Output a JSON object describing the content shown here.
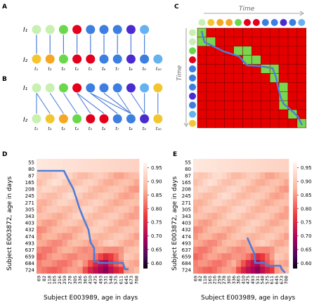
{
  "figure": {
    "panel_labels": {
      "a": "A",
      "b": "B",
      "c": "C",
      "d": "D",
      "e": "E"
    },
    "series_labels": {
      "i1": "I₁",
      "i2": "I₂"
    },
    "t_labels": [
      "t₁",
      "t₂",
      "t₃",
      "t₄",
      "t₅",
      "t₆",
      "t₇",
      "t₈",
      "t₉",
      "t₁₀"
    ],
    "time_label": "Time",
    "circle_colors": {
      "light_green": "#c8f0b0",
      "green": "#69d84a",
      "red": "#e4001c",
      "blue": "#3d7fe0",
      "indigo": "#4b2bd0",
      "light_blue": "#66b2f0",
      "yellow": "#f3c631",
      "orange": "#f5a623"
    },
    "panel_a": {
      "top_row": [
        "light_green",
        "light_green",
        "green",
        "red",
        "blue",
        "blue",
        "blue",
        "indigo",
        "light_blue"
      ],
      "bottom_row": [
        "yellow",
        "orange",
        "green",
        "red",
        "red",
        "blue",
        "blue",
        "indigo",
        "blue",
        "light_blue"
      ]
    },
    "panel_b": {
      "top_row": [
        "light_green",
        "light_green",
        "green",
        "red",
        "blue",
        "blue",
        "blue",
        "indigo",
        "light_blue",
        "yellow"
      ],
      "bottom_row": [
        "light_green",
        "yellow",
        "orange",
        "green",
        "red",
        "red",
        "blue",
        "blue",
        "indigo",
        "yellow"
      ]
    },
    "panel_c": {
      "top_colors": [
        "light_green",
        "yellow",
        "orange",
        "orange",
        "green",
        "red",
        "red",
        "blue",
        "blue",
        "indigo",
        "blue",
        "light_blue"
      ],
      "left_colors": [
        "light_green",
        "light_green",
        "green",
        "red",
        "blue",
        "blue",
        "blue",
        "indigo",
        "blue",
        "light_blue",
        "yellow"
      ],
      "grid_fill": "#e50000",
      "match_fill": "#7ad64e",
      "path_color": "#4d7dd8"
    },
    "heatmap": {
      "x_title": "Subject E003989, age in days",
      "y_title": "Subject E003872, age in days",
      "x_ticks": [
        "69",
        "82",
        "118",
        "165",
        "216",
        "259",
        "278",
        "305",
        "336",
        "365",
        "410",
        "475",
        "493",
        "531",
        "548",
        "575",
        "611",
        "645",
        "673",
        "708"
      ],
      "y_ticks": [
        "55",
        "80",
        "87",
        "165",
        "208",
        "245",
        "271",
        "305",
        "343",
        "403",
        "432",
        "474",
        "493",
        "637",
        "659",
        "684",
        "724"
      ],
      "colorbar_ticks": [
        "0.95",
        "0.90",
        "0.85",
        "0.80",
        "0.75",
        "0.70",
        "0.65",
        "0.60"
      ],
      "colorbar_range": [
        0.58,
        0.97
      ],
      "path_color": "#4d7dd8"
    }
  }
}
